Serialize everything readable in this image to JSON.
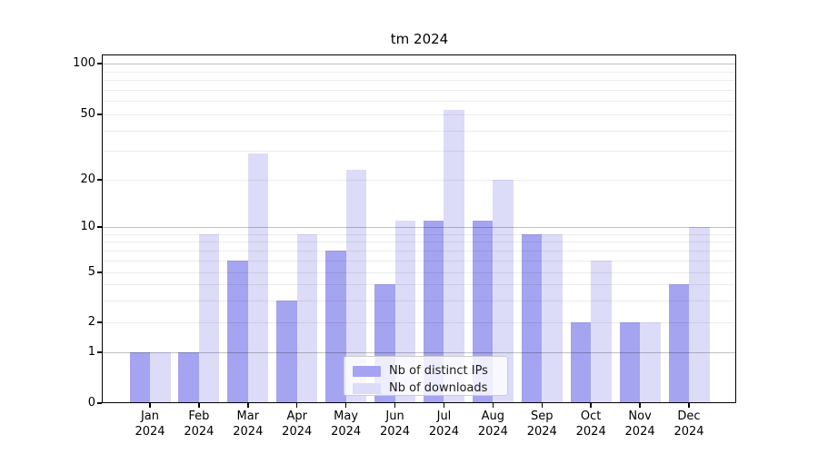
{
  "title": "tm 2024",
  "chart_data": {
    "type": "bar",
    "title": "tm 2024",
    "categories": [
      "Jan 2024",
      "Feb 2024",
      "Mar 2024",
      "Apr 2024",
      "May 2024",
      "Jun 2024",
      "Jul 2024",
      "Aug 2024",
      "Sep 2024",
      "Oct 2024",
      "Nov 2024",
      "Dec 2024"
    ],
    "series": [
      {
        "name": "Nb of distinct IPs",
        "color": "#a4a4f0",
        "values": [
          1,
          1,
          6,
          3,
          7,
          4,
          11,
          11,
          9,
          2,
          2,
          4
        ]
      },
      {
        "name": "Nb of downloads",
        "color": "#dcdcf8",
        "values": [
          1,
          9,
          29,
          9,
          23,
          11,
          53,
          20,
          9,
          6,
          2,
          10
        ]
      }
    ],
    "xlabel": "",
    "ylabel": "",
    "yscale": "log (linear below 1)",
    "yticks": [
      0,
      1,
      2,
      5,
      10,
      20,
      50,
      100
    ],
    "minor_grid_values": [
      2,
      3,
      4,
      5,
      6,
      7,
      8,
      9,
      20,
      30,
      40,
      50,
      60,
      70,
      80,
      90
    ],
    "major_grid_values": [
      1,
      10,
      100
    ],
    "ylim": [
      0,
      112
    ],
    "grid": "both",
    "legend_position": "lower center"
  },
  "colors": {
    "background": "#ffffff",
    "series1_bar": "#a4a4f0",
    "series2_bar": "#dcdcf8",
    "axis": "#000000",
    "legend_border": "#cccccc"
  }
}
